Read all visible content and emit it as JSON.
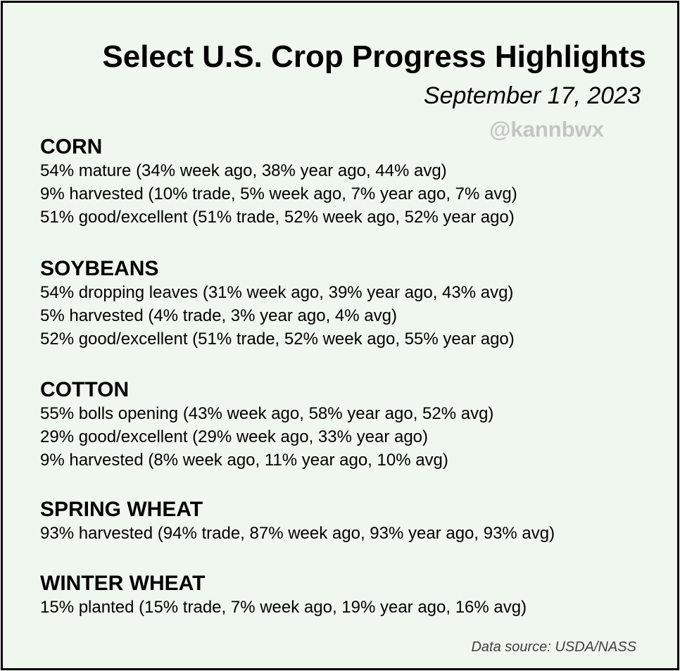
{
  "header": {
    "title": "Select U.S. Crop Progress Highlights",
    "date": "September 17, 2023",
    "handle": "@kannbwx"
  },
  "sections": [
    {
      "heading": "CORN",
      "lines": [
        "54% mature (34% week ago, 38% year ago, 44% avg)",
        "9% harvested (10% trade, 5% week ago, 7% year ago, 7% avg)",
        "51% good/excellent (51% trade, 52% week ago, 52% year ago)"
      ]
    },
    {
      "heading": "SOYBEANS",
      "lines": [
        "54% dropping leaves (31% week ago, 39% year ago, 43% avg)",
        "5% harvested (4% trade, 3% year ago, 4% avg)",
        "52% good/excellent (51% trade, 52% week ago, 55% year ago)"
      ]
    },
    {
      "heading": "COTTON",
      "lines": [
        "55% bolls opening (43% week ago, 58% year ago, 52% avg)",
        "29% good/excellent (29% week ago, 33% year ago)",
        "9% harvested (8% week ago, 11% year ago, 10% avg)"
      ]
    },
    {
      "heading": "SPRING WHEAT",
      "lines": [
        "93% harvested (94% trade, 87% week ago, 93% year ago, 93% avg)"
      ]
    },
    {
      "heading": "WINTER WHEAT",
      "lines": [
        "15% planted (15% trade, 7% week ago, 19% year ago, 16% avg)"
      ]
    }
  ],
  "footer": {
    "source": "Data source: USDA/NASS"
  }
}
